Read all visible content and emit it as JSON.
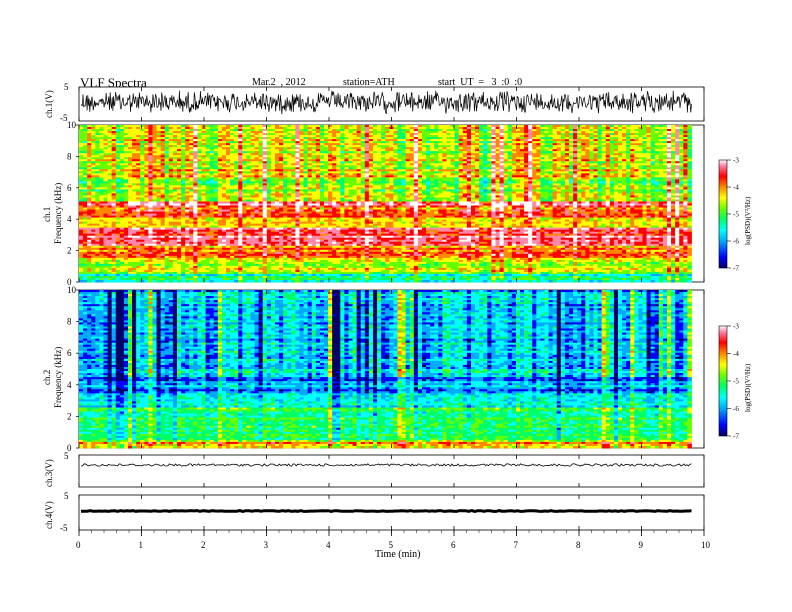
{
  "header": {
    "title": "VLF  Spectra",
    "date": "Mar.2  , 2012",
    "station": "station=ATH",
    "start": "start  UT  =   3  :0  :0"
  },
  "chart_data": [
    {
      "type": "line",
      "name": "ch1-waveform",
      "ylabel": "ch.1(V)",
      "ylim": [
        -5,
        5
      ],
      "yticks": [
        "5",
        "-5"
      ],
      "xlim": [
        0,
        10
      ]
    },
    {
      "type": "heatmap",
      "name": "ch1-spectrogram",
      "ylabel_channel": "ch.1",
      "ylabel": "Frequency  (kHz)",
      "ylim": [
        0,
        10
      ],
      "yticks": [
        "0",
        "2",
        "4",
        "6",
        "8",
        "10"
      ],
      "xlim": [
        0,
        9.8
      ],
      "colorbar": {
        "label": "log(PSD)(V²/Hz)",
        "range": [
          -7,
          -3
        ],
        "ticks": [
          "-3",
          "-4",
          "-5",
          "-6",
          "-7"
        ]
      },
      "colors": [
        "#000066",
        "#0000ff",
        "#00aaff",
        "#00ffff",
        "#00ff66",
        "#66ff00",
        "#ffff00",
        "#ff8800",
        "#ff0000",
        "#ff88aa",
        "#ffffff"
      ],
      "bands_khz": [
        {
          "f0": 0.0,
          "f1": 0.5,
          "level": 0.35
        },
        {
          "f0": 0.5,
          "f1": 1.5,
          "level": 0.55
        },
        {
          "f0": 1.5,
          "f1": 2.3,
          "level": 0.7
        },
        {
          "f0": 2.3,
          "f1": 3.4,
          "level": 0.8
        },
        {
          "f0": 3.4,
          "f1": 4.1,
          "level": 0.62
        },
        {
          "f0": 4.1,
          "f1": 4.7,
          "level": 0.68
        },
        {
          "f0": 4.7,
          "f1": 5.1,
          "level": 0.8
        },
        {
          "f0": 5.1,
          "f1": 6.0,
          "level": 0.52
        },
        {
          "f0": 6.0,
          "f1": 6.6,
          "level": 0.5
        },
        {
          "f0": 6.6,
          "f1": 10.0,
          "level": 0.58
        }
      ]
    },
    {
      "type": "heatmap",
      "name": "ch2-spectrogram",
      "ylabel_channel": "ch.2",
      "ylabel": "Frequency  (kHz)",
      "ylim": [
        0,
        10
      ],
      "yticks": [
        "0",
        "2",
        "4",
        "6",
        "8",
        "10"
      ],
      "xlim": [
        0,
        9.8
      ],
      "colorbar": {
        "label": "log(PSD)(V²/Hz)",
        "range": [
          -7,
          -3
        ],
        "ticks": [
          "-3",
          "-4",
          "-5",
          "-6",
          "-7"
        ]
      },
      "bands_khz": [
        {
          "f0": 0.0,
          "f1": 0.4,
          "level": 0.65
        },
        {
          "f0": 0.4,
          "f1": 0.8,
          "level": 0.45
        },
        {
          "f0": 0.8,
          "f1": 2.6,
          "level": 0.42
        },
        {
          "f0": 2.6,
          "f1": 3.3,
          "level": 0.36
        },
        {
          "f0": 3.3,
          "f1": 4.6,
          "level": 0.24
        },
        {
          "f0": 4.6,
          "f1": 5.6,
          "level": 0.3
        },
        {
          "f0": 5.6,
          "f1": 6.8,
          "level": 0.28
        },
        {
          "f0": 6.8,
          "f1": 10.0,
          "level": 0.26
        }
      ]
    },
    {
      "type": "line",
      "name": "ch3-waveform",
      "ylabel": "ch.3(V)",
      "ylim": [
        -5,
        5
      ],
      "yticks": [
        "5",
        "-5"
      ],
      "xlim": [
        0,
        10
      ]
    },
    {
      "type": "line",
      "name": "ch4-waveform",
      "ylabel": "ch.4(V)",
      "ylim": [
        -5,
        5
      ],
      "yticks": [
        "5",
        "-5"
      ],
      "xlim": [
        0,
        10
      ]
    }
  ],
  "xaxis": {
    "label": "Time  (min)",
    "range": [
      0,
      10
    ],
    "ticks": [
      "0",
      "1",
      "2",
      "3",
      "4",
      "5",
      "6",
      "7",
      "8",
      "9",
      "10"
    ]
  }
}
